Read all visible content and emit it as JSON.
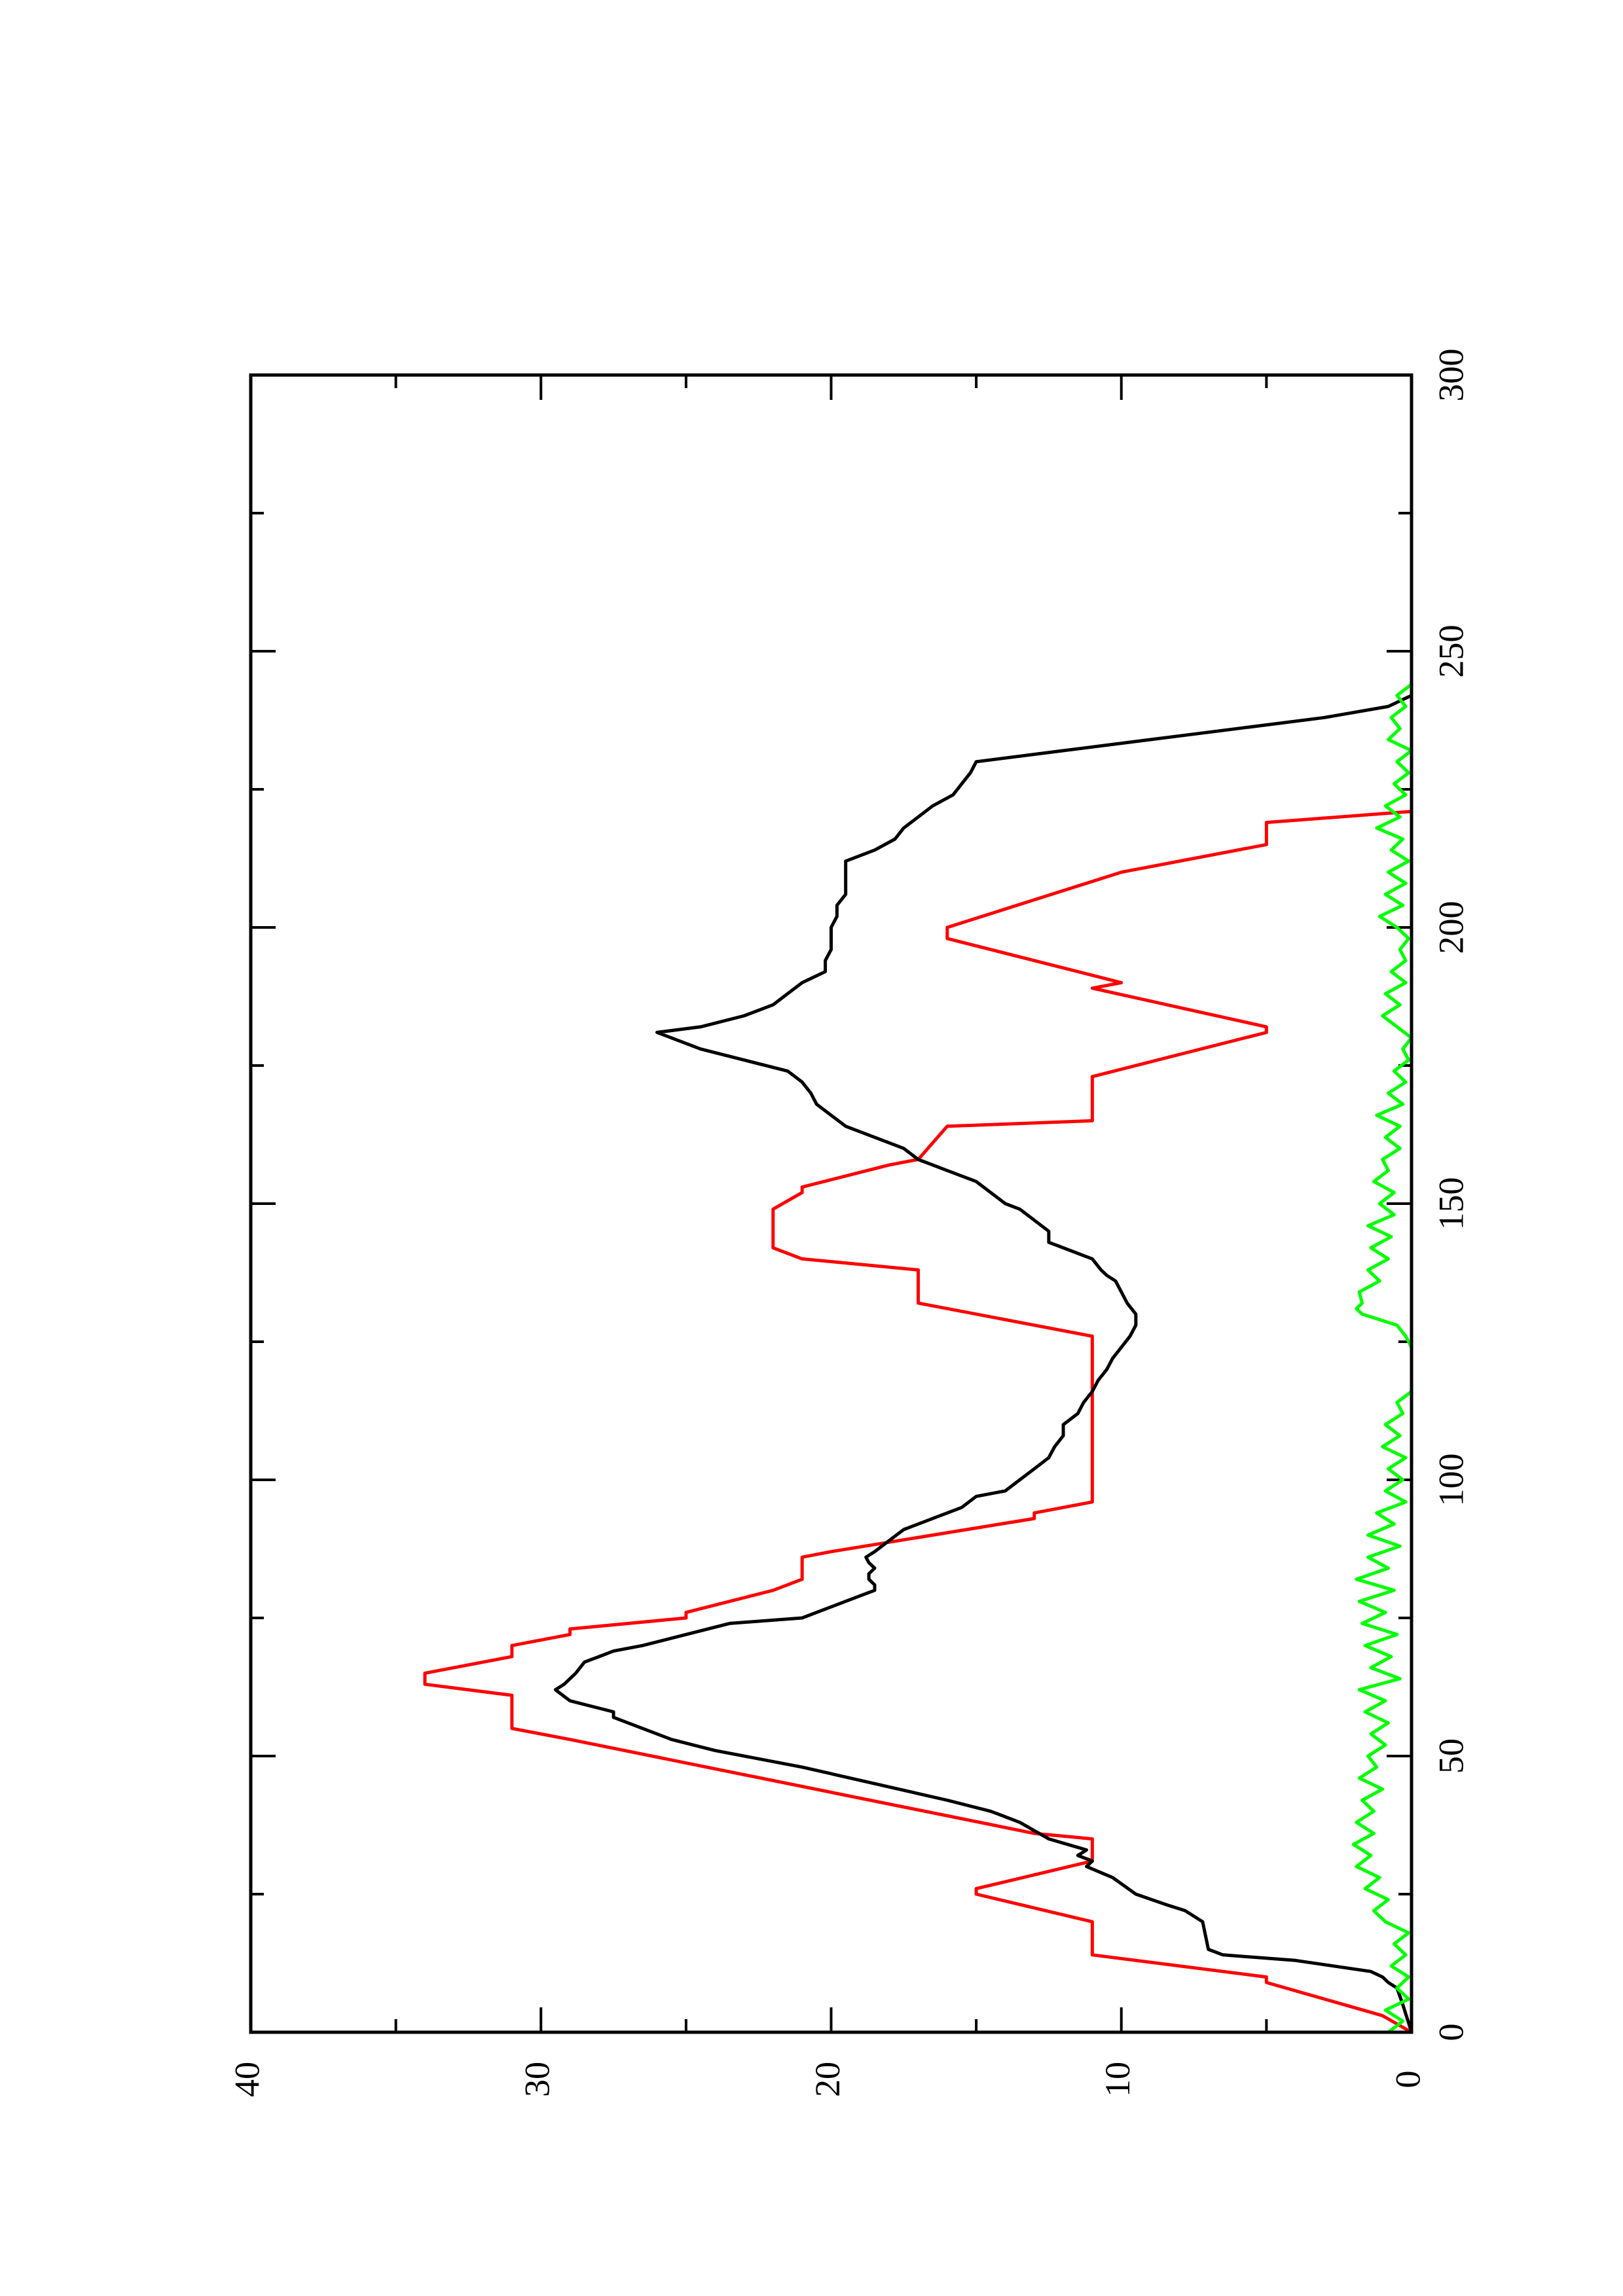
{
  "chart_data": {
    "type": "line",
    "title": "",
    "xlabel": "",
    "ylabel": "",
    "orientation": "rotated 90 degrees counter-clockwise",
    "xlim": [
      0,
      300
    ],
    "ylim": [
      0,
      40
    ],
    "x_ticks": [
      0,
      50,
      100,
      150,
      200,
      250,
      300
    ],
    "x_tick_labels": [
      "0",
      "50",
      "100",
      "150",
      "200",
      "250",
      "300"
    ],
    "y_ticks": [
      0,
      10,
      20,
      30,
      40
    ],
    "y_tick_labels": [
      "0",
      "10",
      "20",
      "30",
      "40"
    ],
    "grid": false,
    "legend": "none",
    "series": [
      {
        "color": "#ff0000",
        "points": [
          [
            0,
            0
          ],
          [
            3,
            1
          ],
          [
            9,
            5
          ],
          [
            10,
            5
          ],
          [
            14,
            11
          ],
          [
            19,
            11
          ],
          [
            20,
            11
          ],
          [
            25,
            15
          ],
          [
            26,
            15
          ],
          [
            31,
            11
          ],
          [
            35,
            11
          ],
          [
            36,
            13
          ],
          [
            53,
            29
          ],
          [
            55,
            31
          ],
          [
            61,
            31
          ],
          [
            63,
            34
          ],
          [
            65,
            34
          ],
          [
            68,
            31
          ],
          [
            70,
            31
          ],
          [
            72,
            29
          ],
          [
            73,
            29
          ],
          [
            75,
            25
          ],
          [
            76,
            25
          ],
          [
            80,
            22
          ],
          [
            82,
            21
          ],
          [
            86,
            21
          ],
          [
            87,
            20
          ],
          [
            93,
            13
          ],
          [
            94,
            13
          ],
          [
            96,
            11
          ],
          [
            126,
            11
          ],
          [
            132,
            17
          ],
          [
            138,
            17
          ],
          [
            140,
            21
          ],
          [
            142,
            22
          ],
          [
            149,
            22
          ],
          [
            152,
            21
          ],
          [
            153,
            21
          ],
          [
            157,
            18
          ],
          [
            158,
            17
          ],
          [
            164,
            16
          ],
          [
            165,
            11
          ],
          [
            173,
            11
          ],
          [
            181,
            5
          ],
          [
            182,
            5
          ],
          [
            189,
            11
          ],
          [
            190,
            10
          ],
          [
            198,
            16
          ],
          [
            200,
            16
          ],
          [
            210,
            10
          ],
          [
            215,
            5
          ],
          [
            219,
            5
          ],
          [
            221,
            0
          ]
        ]
      },
      {
        "color": "#000000",
        "points": [
          [
            0,
            0
          ],
          [
            5,
            0.3
          ],
          [
            8,
            0.5
          ],
          [
            9,
            0.8
          ],
          [
            10,
            1
          ],
          [
            11,
            1.4
          ],
          [
            13,
            4
          ],
          [
            14,
            6.5
          ],
          [
            15,
            7
          ],
          [
            20,
            7.2
          ],
          [
            22,
            7.8
          ],
          [
            23,
            8.4
          ],
          [
            25,
            9.5
          ],
          [
            28,
            10.3
          ],
          [
            30,
            11.2
          ],
          [
            31,
            11
          ],
          [
            32,
            11.5
          ],
          [
            33,
            11.2
          ],
          [
            35,
            12.5
          ],
          [
            38,
            13.5
          ],
          [
            40,
            14.5
          ],
          [
            42,
            16
          ],
          [
            45,
            18.5
          ],
          [
            48,
            21
          ],
          [
            51,
            24
          ],
          [
            53,
            25.5
          ],
          [
            55,
            26.5
          ],
          [
            57,
            27.5
          ],
          [
            58,
            27.5
          ],
          [
            60,
            29
          ],
          [
            62,
            29.5
          ],
          [
            63,
            29.2
          ],
          [
            65,
            28.8
          ],
          [
            67,
            28.5
          ],
          [
            68,
            28
          ],
          [
            69,
            27.5
          ],
          [
            70,
            26.5
          ],
          [
            72,
            25
          ],
          [
            74,
            23.5
          ],
          [
            75,
            21
          ],
          [
            77,
            20
          ],
          [
            79,
            19
          ],
          [
            80,
            18.5
          ],
          [
            81,
            18.5
          ],
          [
            82,
            18.7
          ],
          [
            83,
            18.7
          ],
          [
            84,
            18.5
          ],
          [
            85,
            18.7
          ],
          [
            86,
            18.8
          ],
          [
            87,
            18.5
          ],
          [
            89,
            18
          ],
          [
            91,
            17.5
          ],
          [
            93,
            16.5
          ],
          [
            95,
            15.5
          ],
          [
            97,
            15
          ],
          [
            98,
            14
          ],
          [
            100,
            13.5
          ],
          [
            102,
            13
          ],
          [
            104,
            12.5
          ],
          [
            106,
            12.3
          ],
          [
            108,
            12
          ],
          [
            110,
            12
          ],
          [
            112,
            11.5
          ],
          [
            114,
            11.3
          ],
          [
            116,
            11
          ],
          [
            118,
            10.8
          ],
          [
            120,
            10.5
          ],
          [
            122,
            10.3
          ],
          [
            124,
            10
          ],
          [
            126,
            9.7
          ],
          [
            128,
            9.5
          ],
          [
            130,
            9.5
          ],
          [
            132,
            9.8
          ],
          [
            134,
            10
          ],
          [
            136,
            10.2
          ],
          [
            137,
            10.5
          ],
          [
            138,
            10.7
          ],
          [
            140,
            11
          ],
          [
            141,
            11.5
          ],
          [
            142,
            12
          ],
          [
            143,
            12.5
          ],
          [
            145,
            12.5
          ],
          [
            147,
            13
          ],
          [
            149,
            13.5
          ],
          [
            150,
            14
          ],
          [
            152,
            14.5
          ],
          [
            154,
            15
          ],
          [
            156,
            16
          ],
          [
            158,
            17
          ],
          [
            160,
            17.5
          ],
          [
            162,
            18.5
          ],
          [
            164,
            19.5
          ],
          [
            166,
            20
          ],
          [
            168,
            20.5
          ],
          [
            170,
            20.7
          ],
          [
            172,
            21
          ],
          [
            174,
            21.5
          ],
          [
            176,
            23
          ],
          [
            178,
            24.5
          ],
          [
            180,
            25.5
          ],
          [
            181,
            26
          ],
          [
            182,
            24.5
          ],
          [
            184,
            23
          ],
          [
            186,
            22
          ],
          [
            188,
            21.5
          ],
          [
            190,
            21
          ],
          [
            192,
            20.2
          ],
          [
            194,
            20.2
          ],
          [
            196,
            20
          ],
          [
            198,
            20
          ],
          [
            200,
            20
          ],
          [
            202,
            19.8
          ],
          [
            204,
            19.8
          ],
          [
            206,
            19.5
          ],
          [
            208,
            19.5
          ],
          [
            210,
            19.5
          ],
          [
            212,
            19.5
          ],
          [
            214,
            18.5
          ],
          [
            216,
            17.8
          ],
          [
            218,
            17.5
          ],
          [
            220,
            17
          ],
          [
            222,
            16.5
          ],
          [
            224,
            15.8
          ],
          [
            226,
            15.5
          ],
          [
            228,
            15.2
          ],
          [
            230,
            15
          ],
          [
            232,
            12
          ],
          [
            234,
            9
          ],
          [
            236,
            6
          ],
          [
            238,
            3
          ],
          [
            240,
            0.8
          ],
          [
            242,
            0
          ]
        ]
      },
      {
        "color": "#00ff00",
        "points": [
          [
            0,
            0.8
          ],
          [
            2,
            0.3
          ],
          [
            4,
            0.9
          ],
          [
            6,
            0.1
          ],
          [
            8,
            0.5
          ],
          [
            10,
            0.1
          ],
          [
            12,
            0.7
          ],
          [
            14,
            0.2
          ],
          [
            16,
            0.6
          ],
          [
            18,
            0.1
          ],
          [
            20,
            0.9
          ],
          [
            22,
            1.3
          ],
          [
            24,
            0.8
          ],
          [
            26,
            1.6
          ],
          [
            28,
            1.1
          ],
          [
            30,
            1.9
          ],
          [
            32,
            1.4
          ],
          [
            34,
            2.0
          ],
          [
            36,
            1.3
          ],
          [
            38,
            1.9
          ],
          [
            40,
            1.3
          ],
          [
            42,
            1.7
          ],
          [
            44,
            1.0
          ],
          [
            46,
            1.8
          ],
          [
            48,
            1.2
          ],
          [
            50,
            1.5
          ],
          [
            52,
            0.9
          ],
          [
            54,
            1.4
          ],
          [
            56,
            0.8
          ],
          [
            58,
            1.6
          ],
          [
            60,
            0.9
          ],
          [
            62,
            1.8
          ],
          [
            64,
            0.4
          ],
          [
            66,
            1.4
          ],
          [
            68,
            0.7
          ],
          [
            70,
            1.6
          ],
          [
            72,
            0.5
          ],
          [
            74,
            1.7
          ],
          [
            76,
            0.9
          ],
          [
            78,
            1.8
          ],
          [
            80,
            0.6
          ],
          [
            82,
            1.9
          ],
          [
            84,
            0.8
          ],
          [
            86,
            1.5
          ],
          [
            88,
            0.4
          ],
          [
            90,
            1.5
          ],
          [
            92,
            0.6
          ],
          [
            94,
            1.2
          ],
          [
            96,
            0.2
          ],
          [
            98,
            0.9
          ],
          [
            100,
            0.3
          ],
          [
            102,
            0.8
          ],
          [
            104,
            0.2
          ],
          [
            106,
            1.0
          ],
          [
            108,
            0.4
          ],
          [
            110,
            0.9
          ],
          [
            112,
            0.3
          ],
          [
            114,
            0.5
          ],
          [
            116,
            0.0
          ],
          [
            120,
            0.0
          ],
          [
            124,
            0.0
          ],
          [
            126,
            0.2
          ],
          [
            128,
            0.5
          ],
          [
            130,
            1.7
          ],
          [
            131,
            1.9
          ],
          [
            132,
            1.7
          ],
          [
            134,
            1.8
          ],
          [
            136,
            1.1
          ],
          [
            138,
            1.5
          ],
          [
            140,
            0.8
          ],
          [
            142,
            1.4
          ],
          [
            144,
            0.7
          ],
          [
            146,
            1.5
          ],
          [
            148,
            0.6
          ],
          [
            150,
            1.1
          ],
          [
            152,
            0.6
          ],
          [
            154,
            1.3
          ],
          [
            156,
            0.8
          ],
          [
            158,
            1.0
          ],
          [
            160,
            0.4
          ],
          [
            162,
            0.9
          ],
          [
            164,
            0.4
          ],
          [
            166,
            1.2
          ],
          [
            168,
            0.3
          ],
          [
            170,
            0.8
          ],
          [
            172,
            0.2
          ],
          [
            174,
            0.6
          ],
          [
            176,
            0.1
          ],
          [
            178,
            0.3
          ],
          [
            180,
            0.0
          ],
          [
            182,
            0.5
          ],
          [
            184,
            1.0
          ],
          [
            186,
            0.4
          ],
          [
            188,
            0.9
          ],
          [
            190,
            0.2
          ],
          [
            192,
            0.7
          ],
          [
            194,
            0.2
          ],
          [
            196,
            0.4
          ],
          [
            198,
            0.1
          ],
          [
            200,
            0.5
          ],
          [
            202,
            1.1
          ],
          [
            204,
            0.3
          ],
          [
            206,
            0.9
          ],
          [
            208,
            0.2
          ],
          [
            210,
            0.8
          ],
          [
            212,
            0.1
          ],
          [
            214,
            0.7
          ],
          [
            216,
            0.3
          ],
          [
            218,
            1.2
          ],
          [
            220,
            0.4
          ],
          [
            222,
            0.9
          ],
          [
            224,
            0.2
          ],
          [
            226,
            0.6
          ],
          [
            228,
            0.1
          ],
          [
            230,
            0.5
          ],
          [
            232,
            0.0
          ],
          [
            234,
            0.8
          ],
          [
            236,
            0.4
          ],
          [
            238,
            0.7
          ],
          [
            240,
            0.2
          ],
          [
            242,
            0.5
          ],
          [
            244,
            0.0
          ]
        ]
      }
    ]
  }
}
